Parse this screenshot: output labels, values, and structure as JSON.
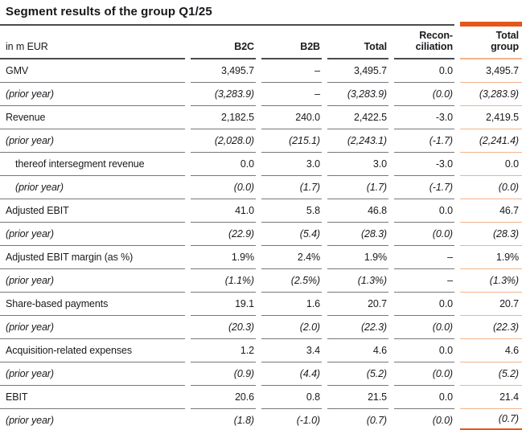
{
  "title": "Segment results of the group Q1/25",
  "colors": {
    "accent_orange": "#e4571b",
    "light_orange_rule": "#f0b38c",
    "gray_rule": "#77777b",
    "dark_rule": "#4b4b4f"
  },
  "header": {
    "unit_label": "in m EUR",
    "columns": [
      {
        "line1": "B2C"
      },
      {
        "line1": "B2B"
      },
      {
        "line1": "Total"
      },
      {
        "line1": "Recon-",
        "line2": "ciliation"
      },
      {
        "line1": "Total",
        "line2": "group"
      }
    ]
  },
  "rows": [
    {
      "label": "GMV",
      "values": [
        "3,495.7",
        "–",
        "3,495.7",
        "0.0",
        "3,495.7"
      ]
    },
    {
      "label": "(prior year)",
      "values": [
        "(3,283.9)",
        "–",
        "(3,283.9)",
        "(0.0)",
        "(3,283.9)"
      ]
    },
    {
      "label": "Revenue",
      "values": [
        "2,182.5",
        "240.0",
        "2,422.5",
        "-3.0",
        "2,419.5"
      ]
    },
    {
      "label": "(prior year)",
      "values": [
        "(2,028.0)",
        "(215.1)",
        "(2,243.1)",
        "(-1.7)",
        "(2,241.4)"
      ]
    },
    {
      "label": "thereof intersegment revenue",
      "values": [
        "0.0",
        "3.0",
        "3.0",
        "-3.0",
        "0.0"
      ]
    },
    {
      "label": "(prior year)",
      "values": [
        "(0.0)",
        "(1.7)",
        "(1.7)",
        "(-1.7)",
        "(0.0)"
      ]
    },
    {
      "label": "Adjusted EBIT",
      "values": [
        "41.0",
        "5.8",
        "46.8",
        "0.0",
        "46.7"
      ]
    },
    {
      "label": "(prior year)",
      "values": [
        "(22.9)",
        "(5.4)",
        "(28.3)",
        "(0.0)",
        "(28.3)"
      ]
    },
    {
      "label": "Adjusted EBIT margin (as %)",
      "values": [
        "1.9%",
        "2.4%",
        "1.9%",
        "–",
        "1.9%"
      ]
    },
    {
      "label": "(prior year)",
      "values": [
        "(1.1%)",
        "(2.5%)",
        "(1.3%)",
        "–",
        "(1.3%)"
      ]
    },
    {
      "label": "Share-based payments",
      "values": [
        "19.1",
        "1.6",
        "20.7",
        "0.0",
        "20.7"
      ]
    },
    {
      "label": "(prior year)",
      "values": [
        "(20.3)",
        "(2.0)",
        "(22.3)",
        "(0.0)",
        "(22.3)"
      ]
    },
    {
      "label": "Acquisition-related expenses",
      "values": [
        "1.2",
        "3.4",
        "4.6",
        "0.0",
        "4.6"
      ]
    },
    {
      "label": "(prior year)",
      "values": [
        "(0.9)",
        "(4.4)",
        "(5.2)",
        "(0.0)",
        "(5.2)"
      ]
    },
    {
      "label": "EBIT",
      "values": [
        "20.6",
        "0.8",
        "21.5",
        "0.0",
        "21.4"
      ]
    },
    {
      "label": "(prior year)",
      "values": [
        "(1.8)",
        "(-1.0)",
        "(0.7)",
        "(0.0)",
        "(0.7)"
      ]
    }
  ]
}
